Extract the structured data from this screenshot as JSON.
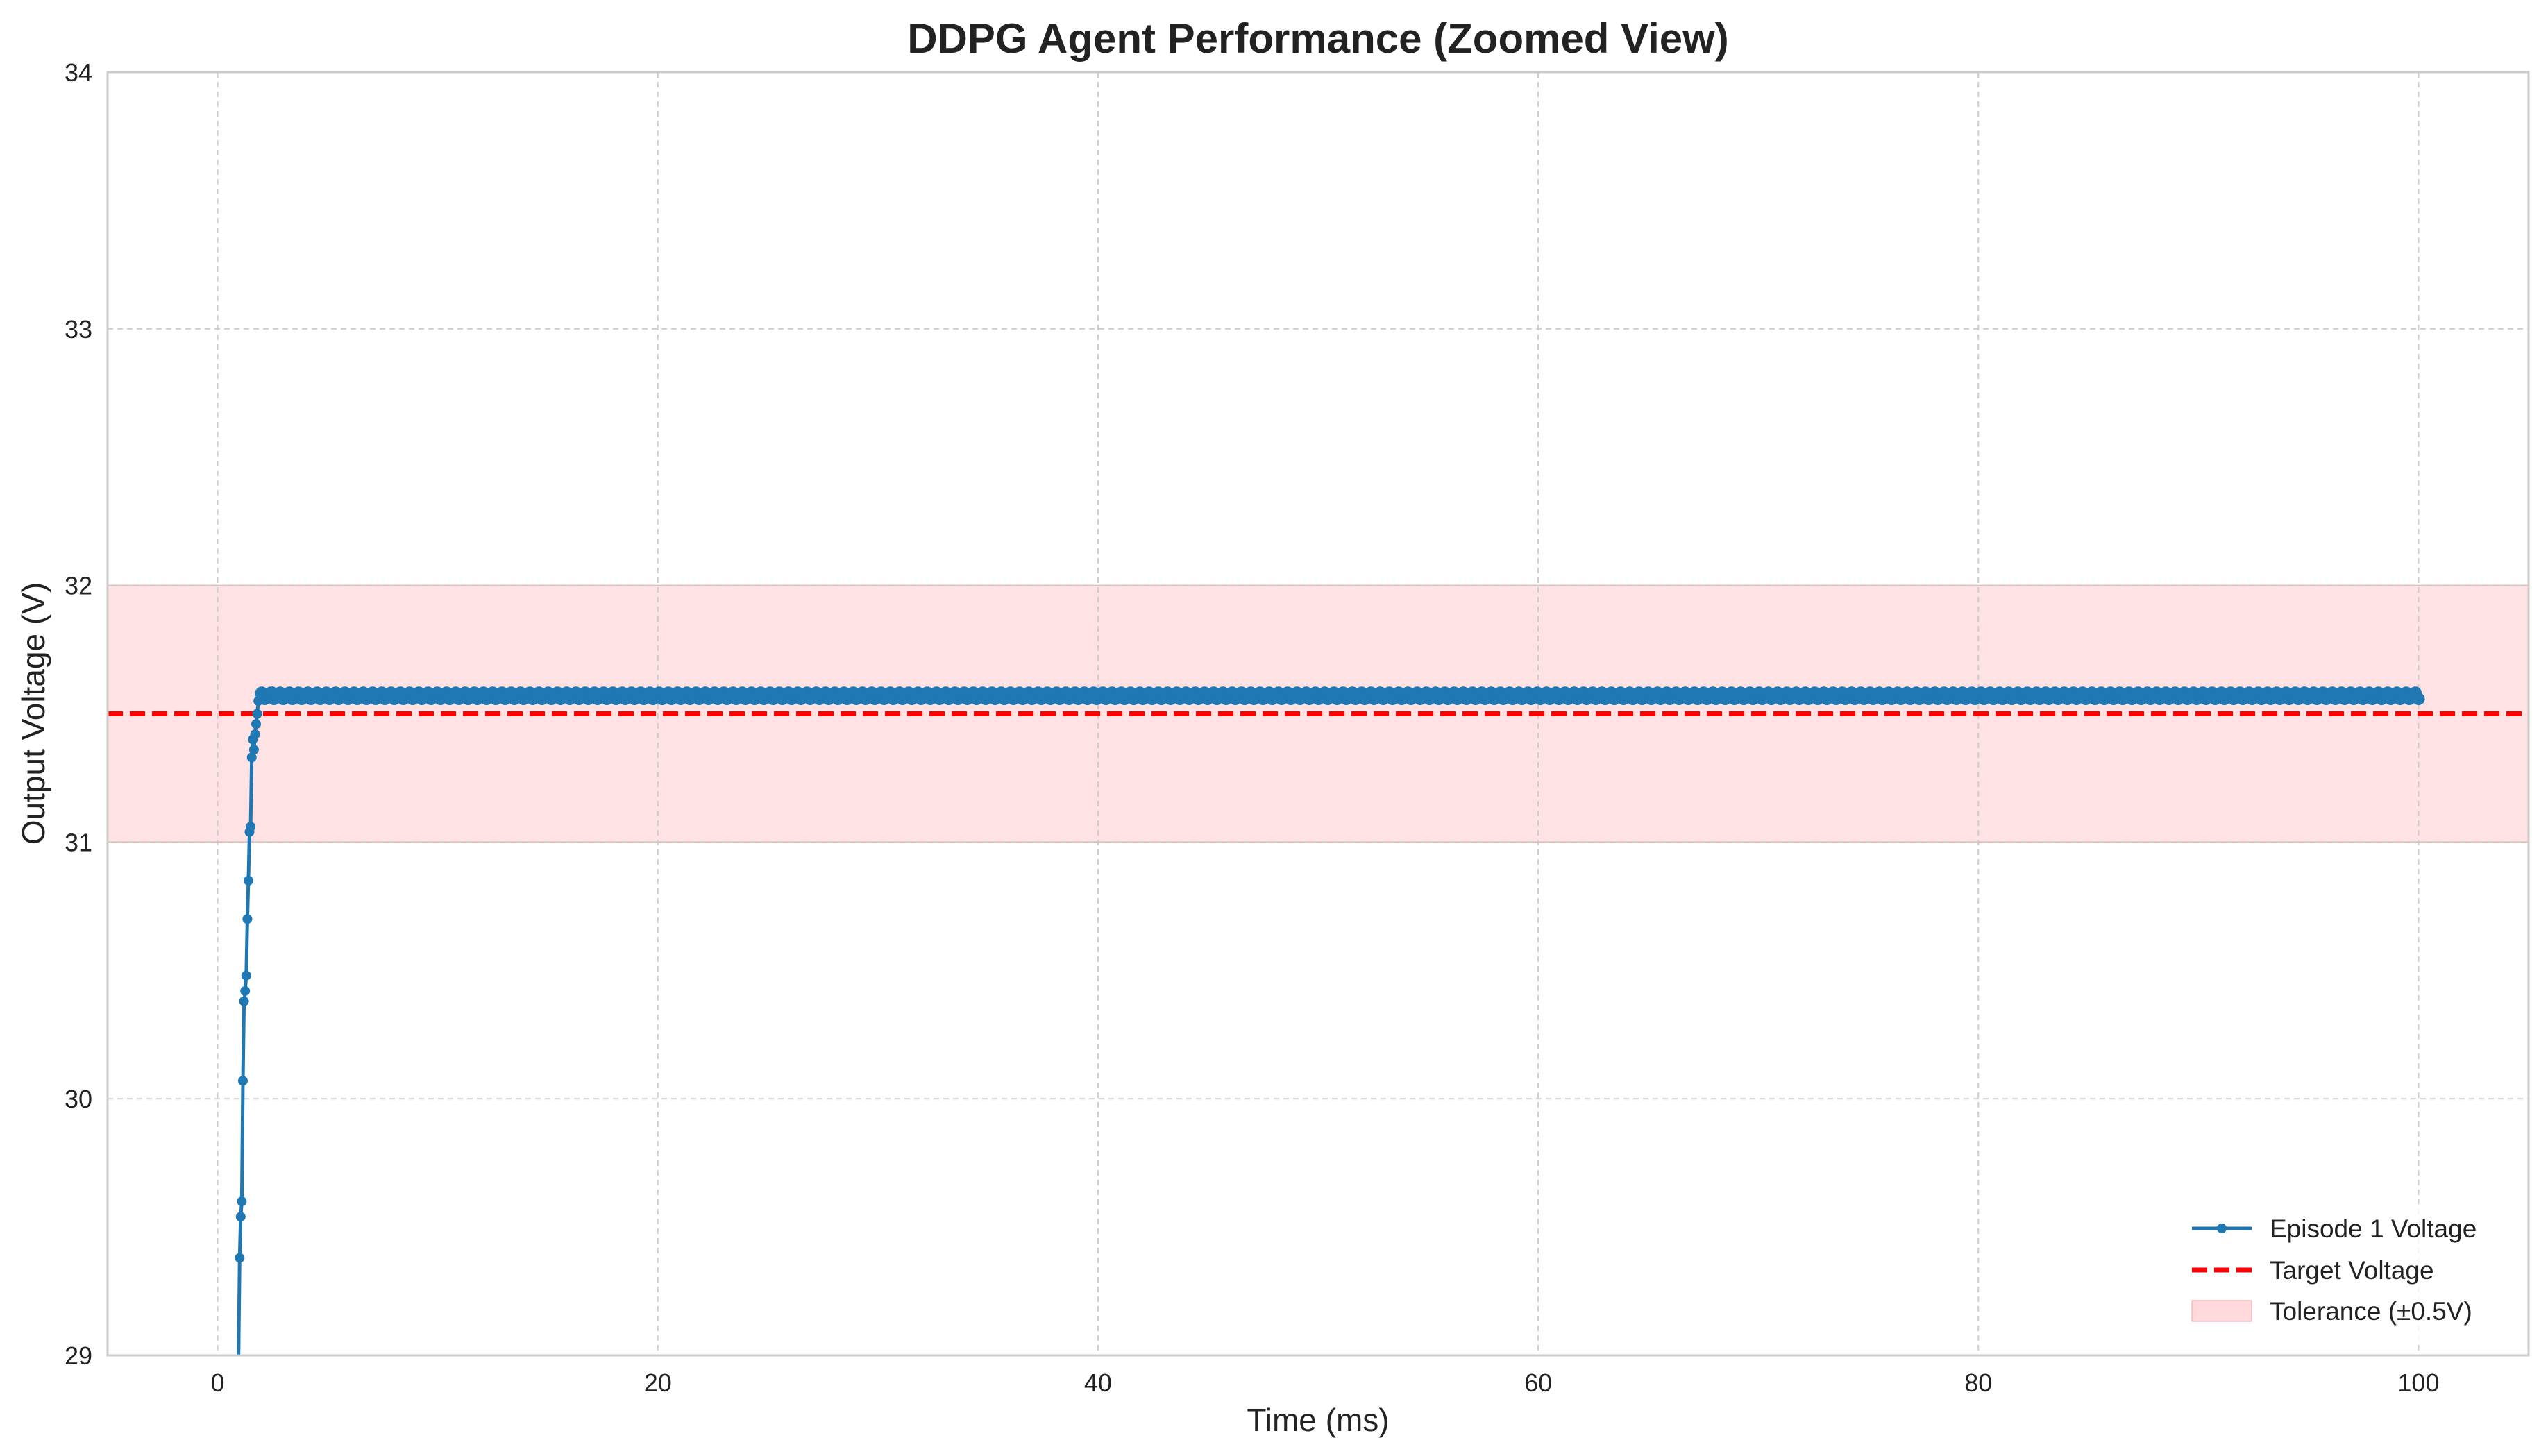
{
  "chart_data": {
    "type": "line",
    "title": "DDPG Agent Performance (Zoomed View)",
    "xlabel": "Time (ms)",
    "ylabel": "Output Voltage (V)",
    "xlim": [
      -5,
      105
    ],
    "ylim": [
      29,
      34
    ],
    "xticks": [
      0,
      20,
      40,
      60,
      80,
      100
    ],
    "yticks": [
      29,
      30,
      31,
      32,
      33,
      34
    ],
    "grid": true,
    "legend_position": "lower-right",
    "series": [
      {
        "name": "Episode 1 Voltage",
        "color": "#1f77b4",
        "style": "line-with-markers",
        "x": [
          0.95,
          1.0,
          1.05,
          1.1,
          1.15,
          1.2,
          1.25,
          1.3,
          1.35,
          1.4,
          1.45,
          1.5,
          1.55,
          1.6,
          1.65,
          1.7,
          1.75,
          1.8,
          1.85,
          1.9,
          2.0,
          2.2,
          2.5,
          3,
          4,
          5,
          10,
          20,
          30,
          40,
          50,
          60,
          70,
          80,
          90,
          95,
          99,
          99.5,
          100
        ],
        "y": [
          29.0,
          29.38,
          29.54,
          29.6,
          30.07,
          30.38,
          30.42,
          30.48,
          30.7,
          30.85,
          31.04,
          31.06,
          31.33,
          31.4,
          31.36,
          31.42,
          31.46,
          31.5,
          31.55,
          31.58,
          31.57,
          31.59,
          31.6,
          31.58,
          31.57,
          31.58,
          31.57,
          31.57,
          31.57,
          31.57,
          31.57,
          31.57,
          31.57,
          31.57,
          31.57,
          31.57,
          31.58,
          31.56,
          31.56
        ]
      },
      {
        "name": "Target Voltage",
        "color": "#ff0000",
        "style": "dashed",
        "y_constant": 31.5
      }
    ],
    "bands": [
      {
        "name": "Tolerance (±0.5V)",
        "y_range": [
          31.0,
          32.0
        ],
        "color": "#ffc0c4"
      }
    ]
  }
}
